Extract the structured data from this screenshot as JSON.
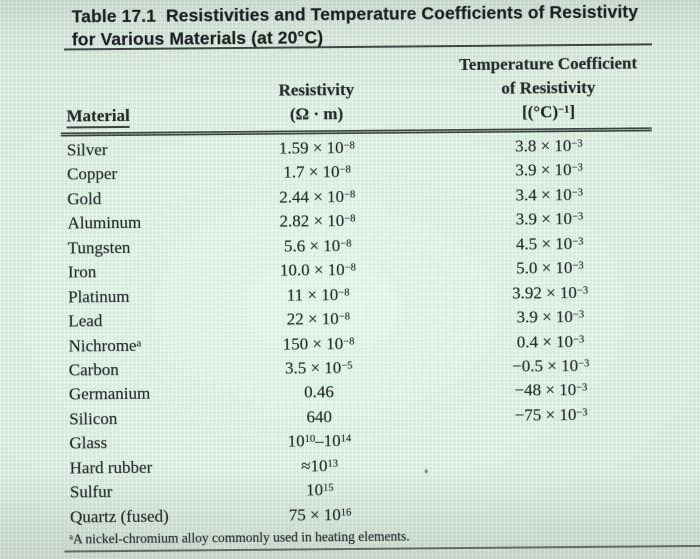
{
  "colors": {
    "bg": "#d7e8dc",
    "text": "#242b2c",
    "title": "#1b2123",
    "rule": "#3e4746"
  },
  "title": {
    "line1": "Table 17.1  Resistivities and Temperature Coefficients of Resistivity",
    "line2": "for Various Materials (at 20°C)"
  },
  "header": {
    "material": "Material",
    "resistivity_line1": "Resistivity",
    "resistivity_line2": "(Ω · m)",
    "coefficient_line1": "Temperature Coefficient",
    "coefficient_line2": "of Resistivity",
    "coefficient_line3": [
      {
        "t": "[(°C)"
      },
      {
        "t": "−1",
        "sup": true
      },
      {
        "t": "]"
      }
    ]
  },
  "rows": [
    {
      "material": "Silver",
      "res": [
        {
          "t": "1.59 × 10"
        },
        {
          "t": "−8",
          "sup": true
        }
      ],
      "coef": [
        {
          "t": "3.8 × 10"
        },
        {
          "t": "−3",
          "sup": true
        }
      ]
    },
    {
      "material": "Copper",
      "res": [
        {
          "t": "1.7 × 10"
        },
        {
          "t": "−8",
          "sup": true
        }
      ],
      "coef": [
        {
          "t": "3.9 × 10"
        },
        {
          "t": "−3",
          "sup": true
        }
      ]
    },
    {
      "material": "Gold",
      "res": [
        {
          "t": "2.44 × 10"
        },
        {
          "t": "−8",
          "sup": true
        }
      ],
      "coef": [
        {
          "t": "3.4 × 10"
        },
        {
          "t": "−3",
          "sup": true
        }
      ]
    },
    {
      "material": "Aluminum",
      "res": [
        {
          "t": "2.82 × 10"
        },
        {
          "t": "−8",
          "sup": true
        }
      ],
      "coef": [
        {
          "t": "3.9 × 10"
        },
        {
          "t": "−3",
          "sup": true
        }
      ]
    },
    {
      "material": "Tungsten",
      "res": [
        {
          "t": "5.6 × 10"
        },
        {
          "t": "−8",
          "sup": true
        }
      ],
      "coef": [
        {
          "t": "4.5 × 10"
        },
        {
          "t": "−3",
          "sup": true
        }
      ]
    },
    {
      "material": "Iron",
      "res": [
        {
          "t": "10.0 × 10"
        },
        {
          "t": "−8",
          "sup": true
        }
      ],
      "coef": [
        {
          "t": "5.0 × 10"
        },
        {
          "t": "−3",
          "sup": true
        }
      ]
    },
    {
      "material": "Platinum",
      "res": [
        {
          "t": "11 × 10"
        },
        {
          "t": "−8",
          "sup": true
        }
      ],
      "coef": [
        {
          "t": "3.92 × 10"
        },
        {
          "t": "−3",
          "sup": true
        }
      ]
    },
    {
      "material": "Lead",
      "res": [
        {
          "t": "22 × 10"
        },
        {
          "t": "−8",
          "sup": true
        }
      ],
      "coef": [
        {
          "t": "3.9 × 10"
        },
        {
          "t": "−3",
          "sup": true
        }
      ]
    },
    {
      "material": "Nichrome",
      "note": "a",
      "res": [
        {
          "t": "150 × 10"
        },
        {
          "t": "−8",
          "sup": true
        }
      ],
      "coef": [
        {
          "t": "0.4 × 10"
        },
        {
          "t": "−3",
          "sup": true
        }
      ]
    },
    {
      "material": "Carbon",
      "res": [
        {
          "t": "3.5 × 10"
        },
        {
          "t": "−5",
          "sup": true
        }
      ],
      "coef": [
        {
          "t": "−0.5 × 10"
        },
        {
          "t": "−3",
          "sup": true
        }
      ]
    },
    {
      "material": "Germanium",
      "res": [
        {
          "t": "0.46"
        }
      ],
      "coef": [
        {
          "t": "−48 × 10"
        },
        {
          "t": "−3",
          "sup": true
        }
      ]
    },
    {
      "material": "Silicon",
      "res": [
        {
          "t": "640"
        }
      ],
      "coef": [
        {
          "t": "−75 × 10"
        },
        {
          "t": "−3",
          "sup": true
        }
      ]
    },
    {
      "material": "Glass",
      "res": [
        {
          "t": "10"
        },
        {
          "t": "10",
          "sup": true
        },
        {
          "t": "–10"
        },
        {
          "t": "14",
          "sup": true
        }
      ],
      "coef": []
    },
    {
      "material": "Hard rubber",
      "res": [
        {
          "t": "≈10"
        },
        {
          "t": "13",
          "sup": true
        }
      ],
      "coef": []
    },
    {
      "material": "Sulfur",
      "res": [
        {
          "t": "10"
        },
        {
          "t": "15",
          "sup": true
        }
      ],
      "coef": []
    },
    {
      "material": "Quartz (fused)",
      "res": [
        {
          "t": "75 × 10"
        },
        {
          "t": "16",
          "sup": true
        }
      ],
      "coef": []
    }
  ],
  "footnote": {
    "marker": "a",
    "text": "A nickel-chromium alloy commonly used in heating elements."
  }
}
